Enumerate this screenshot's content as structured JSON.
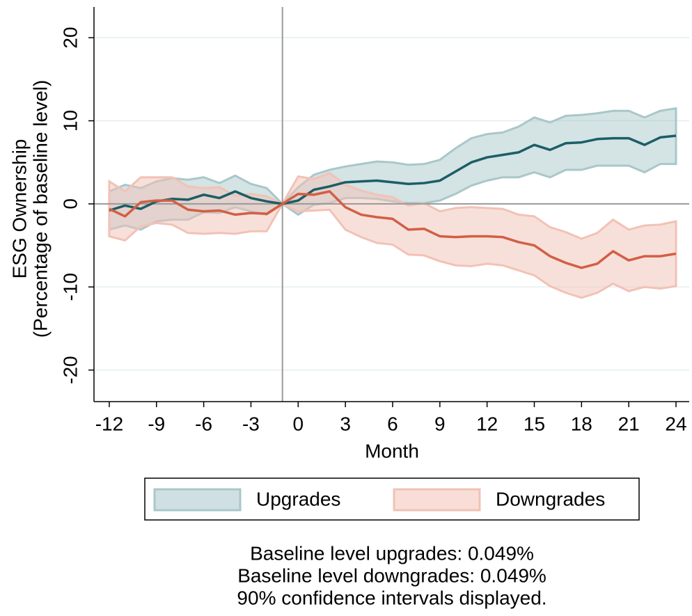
{
  "chart_data": {
    "type": "line_band",
    "x_label": "Month",
    "y_label": [
      "ESG Ownership",
      "(Percentage of baseline level)"
    ],
    "x": [
      -12,
      -11,
      -10,
      -9,
      -8,
      -7,
      -6,
      -5,
      -4,
      -3,
      -2,
      -1,
      0,
      1,
      2,
      3,
      4,
      5,
      6,
      7,
      8,
      9,
      10,
      11,
      12,
      13,
      14,
      15,
      16,
      17,
      18,
      19,
      20,
      21,
      22,
      23,
      24
    ],
    "xlim": [
      -12.97,
      24.84
    ],
    "xticks": [
      -12,
      -9,
      -6,
      -3,
      0,
      3,
      6,
      9,
      12,
      15,
      18,
      21,
      24
    ],
    "ylim": [
      -23.8,
      23.7
    ],
    "yticks": [
      -20,
      -10,
      0,
      10,
      20
    ],
    "grid": true,
    "vline": -1,
    "hline": 0,
    "series": [
      {
        "name": "Upgrades",
        "color": "#1b5e66",
        "band_color": "#a9c7ca",
        "values": [
          -0.8,
          -0.2,
          -0.6,
          0.3,
          0.6,
          0.5,
          1.1,
          0.7,
          1.5,
          0.7,
          0.3,
          0,
          0.4,
          1.7,
          2.1,
          2.6,
          2.7,
          2.8,
          2.6,
          2.4,
          2.5,
          2.8,
          3.9,
          5.0,
          5.6,
          5.9,
          6.2,
          7.1,
          6.5,
          7.3,
          7.4,
          7.8,
          7.9,
          7.9,
          7.1,
          8.0,
          8.2
        ],
        "upper": [
          1.5,
          2.3,
          1.9,
          2.7,
          3.1,
          2.9,
          3.2,
          2.5,
          3.4,
          2.4,
          1.9,
          0,
          2.0,
          3.5,
          4.1,
          4.5,
          4.8,
          5.1,
          5.0,
          4.7,
          4.8,
          5.3,
          6.7,
          7.9,
          8.4,
          8.6,
          9.3,
          10.4,
          9.8,
          10.6,
          10.7,
          10.9,
          11.2,
          11.2,
          10.4,
          11.2,
          11.5
        ],
        "lower": [
          -3.1,
          -2.6,
          -3.1,
          -2.1,
          -1.9,
          -1.9,
          -1.0,
          -1.1,
          -0.4,
          -0.9,
          -1.3,
          0,
          -1.3,
          -0.1,
          0.1,
          0.7,
          0.7,
          0.6,
          0.3,
          0.1,
          0.1,
          0.4,
          1.2,
          2.2,
          2.8,
          3.2,
          3.2,
          3.8,
          3.2,
          4.1,
          4.1,
          4.6,
          4.6,
          4.6,
          3.8,
          4.8,
          4.8
        ]
      },
      {
        "name": "Downgrades",
        "color": "#d25f44",
        "band_color": "#f2c2b5",
        "values": [
          -0.6,
          -1.5,
          0.2,
          0.4,
          0.4,
          -0.7,
          -0.9,
          -0.8,
          -1.3,
          -1.1,
          -1.2,
          0,
          1.2,
          1.1,
          1.5,
          -0.4,
          -1.3,
          -1.6,
          -1.8,
          -3.1,
          -3.0,
          -3.9,
          -4.0,
          -3.9,
          -3.9,
          -4.0,
          -4.6,
          -5.0,
          -6.3,
          -7.1,
          -7.7,
          -7.2,
          -5.7,
          -6.8,
          -6.3,
          -6.3,
          -6.0
        ],
        "upper": [
          2.7,
          1.5,
          3.2,
          3.2,
          3.2,
          2.1,
          1.9,
          2.0,
          1.0,
          1.2,
          0.9,
          0,
          3.3,
          3.0,
          3.7,
          2.3,
          1.6,
          1.1,
          0.8,
          -0.2,
          0.1,
          -0.9,
          -0.5,
          -0.4,
          -0.5,
          -0.6,
          -1.3,
          -1.5,
          -2.8,
          -3.4,
          -4.2,
          -3.5,
          -1.9,
          -3.1,
          -2.6,
          -2.5,
          -2.1
        ],
        "lower": [
          -3.9,
          -4.4,
          -2.7,
          -2.3,
          -2.5,
          -3.5,
          -3.6,
          -3.5,
          -3.6,
          -3.3,
          -3.3,
          0,
          -0.9,
          -0.8,
          -0.7,
          -3.1,
          -4.0,
          -4.7,
          -4.9,
          -6.1,
          -6.2,
          -6.9,
          -7.4,
          -7.5,
          -7.2,
          -7.4,
          -8.0,
          -8.6,
          -9.9,
          -10.7,
          -11.3,
          -10.7,
          -9.6,
          -10.5,
          -10.0,
          -10.2,
          -9.9
        ]
      }
    ],
    "notes": [
      "Baseline level upgrades: 0.049%",
      "Baseline level downgrades: 0.049%",
      "90% confidence intervals displayed."
    ]
  }
}
